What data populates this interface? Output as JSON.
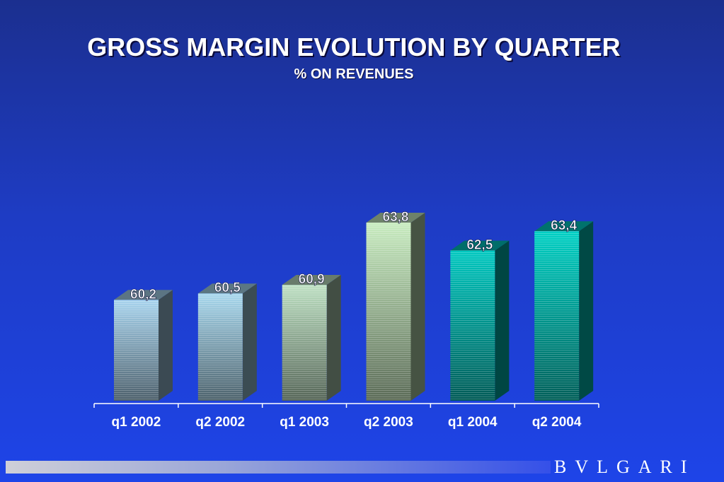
{
  "chart_data": {
    "type": "bar",
    "title": "GROSS MARGIN EVOLUTION BY QUARTER",
    "subtitle": "% ON REVENUES",
    "categories": [
      "q1 2002",
      "q2 2002",
      "q1 2003",
      "q2 2003",
      "q1 2004",
      "q2 2004"
    ],
    "values": [
      60.2,
      60.5,
      60.9,
      63.8,
      62.5,
      63.4
    ],
    "value_labels": [
      "60,2",
      "60,5",
      "60,9",
      "63,8",
      "62,5",
      "63,4"
    ],
    "ylim": [
      55.5,
      63.8
    ],
    "grid": false,
    "legend": "none",
    "bar_colors": [
      "#a8d4ee",
      "#a8d8ee",
      "#bde0c2",
      "#c8ecc0",
      "#00c8c0",
      "#00d0c4"
    ]
  },
  "brand": {
    "name": "BVLGARI",
    "text_color": "#ffffff"
  }
}
